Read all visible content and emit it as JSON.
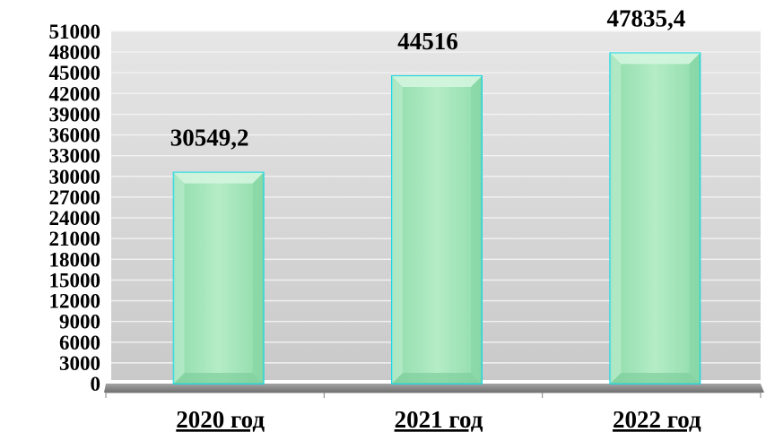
{
  "chart_data": {
    "type": "bar",
    "title": "",
    "xlabel": "",
    "ylabel": "",
    "categories": [
      "2020 год",
      "2021 год",
      "2022 год"
    ],
    "values": [
      30549.2,
      44516,
      47835.4
    ],
    "data_labels": [
      "30549,2",
      "44516",
      "47835,4"
    ],
    "ylim": [
      0,
      51000
    ],
    "yticks": [
      0,
      3000,
      6000,
      9000,
      12000,
      15000,
      18000,
      21000,
      24000,
      27000,
      30000,
      33000,
      36000,
      39000,
      42000,
      45000,
      48000,
      51000
    ],
    "ytick_labels": [
      "0",
      "3000",
      "6000",
      "9000",
      "12000",
      "15000",
      "18000",
      "21000",
      "24000",
      "27000",
      "30000",
      "33000",
      "36000",
      "39000",
      "42000",
      "45000",
      "48000",
      "51000"
    ],
    "grid": true,
    "legend": "none",
    "colors": {
      "bar_fill": "#a8e6bc",
      "bar_edge": "#1fd7e0",
      "plot_background": "#d9d9d9",
      "grid": "#f2f2f2",
      "floor": "#8c8c8c"
    }
  }
}
